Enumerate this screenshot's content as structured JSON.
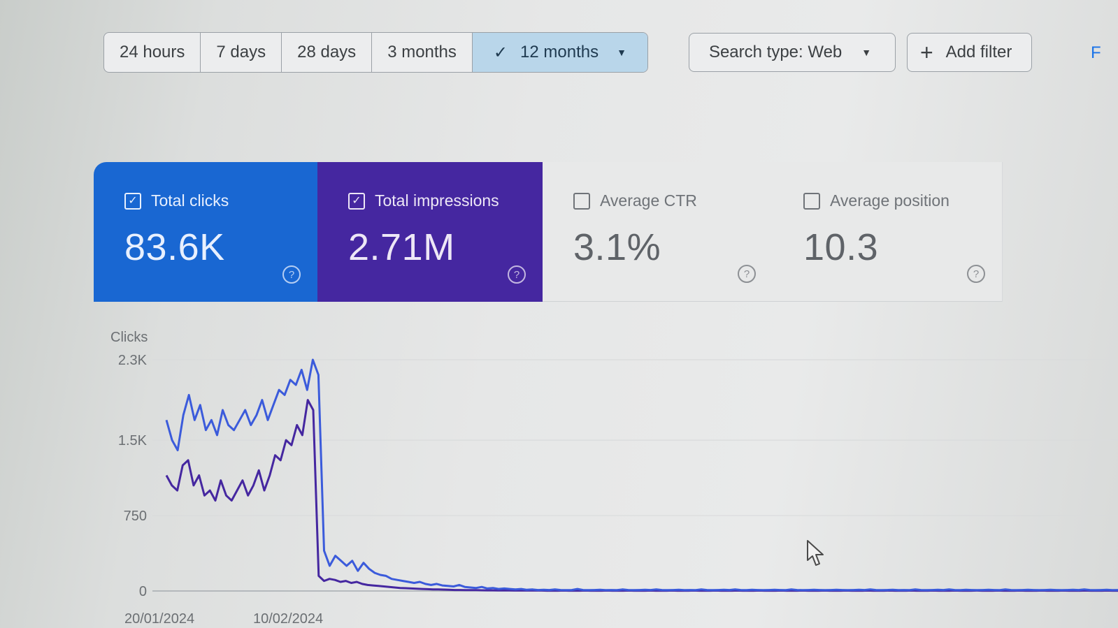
{
  "toolbar": {
    "ranges": [
      {
        "label": "24 hours",
        "active": false
      },
      {
        "label": "7 days",
        "active": false
      },
      {
        "label": "28 days",
        "active": false
      },
      {
        "label": "3 months",
        "active": false
      },
      {
        "label": "12 months",
        "active": true
      }
    ],
    "active_check_icon": "check-icon",
    "dropdown_icon": "caret-down-icon",
    "search_type_label": "Search type: Web",
    "add_filter_label": "Add filter",
    "edge_text": "F"
  },
  "metrics": [
    {
      "label": "Total clicks",
      "value": "83.6K",
      "checked": true,
      "color": "#1967d2"
    },
    {
      "label": "Total impressions",
      "value": "2.71M",
      "checked": true,
      "color": "#4527a0"
    },
    {
      "label": "Average CTR",
      "value": "3.1%",
      "checked": false,
      "color": "#e8e9e9"
    },
    {
      "label": "Average position",
      "value": "10.3",
      "checked": false,
      "color": "#e8e9e9"
    }
  ],
  "chart_data": {
    "type": "line",
    "ylabel": "Clicks",
    "yticks": [
      "2.3K",
      "1.5K",
      "750",
      "0"
    ],
    "ylim": [
      0,
      2300
    ],
    "x_label_first": "20/01/2024",
    "x_label_second": "10/02/2024",
    "grid": true,
    "series": [
      {
        "color": "#3b5bdb",
        "values": [
          1700,
          1500,
          1400,
          1750,
          1950,
          1700,
          1850,
          1600,
          1700,
          1550,
          1800,
          1650,
          1600,
          1700,
          1800,
          1650,
          1750,
          1900,
          1700,
          1850,
          2000,
          1950,
          2100,
          2050,
          2200,
          2000,
          2300,
          2150,
          400,
          250,
          350,
          300,
          250,
          300,
          200,
          280,
          220,
          180,
          160,
          150,
          120,
          110,
          100,
          90,
          80,
          90,
          70,
          60,
          70,
          55,
          50,
          45,
          60,
          40,
          35,
          30,
          40,
          25,
          30,
          20,
          25,
          20,
          15,
          20,
          12,
          15,
          10,
          12,
          10,
          15,
          10,
          8,
          10,
          20,
          10,
          8,
          10,
          12,
          8,
          10,
          8,
          15,
          10,
          8,
          10,
          12,
          10,
          15,
          10,
          8,
          10,
          12,
          8,
          10,
          8,
          15,
          10,
          8,
          10,
          12,
          10,
          15,
          10,
          8,
          12,
          10,
          8,
          10,
          12,
          10,
          8,
          15,
          10,
          8,
          10,
          12,
          10,
          8,
          10,
          12,
          10,
          8,
          10,
          12,
          10,
          15,
          10,
          8,
          10,
          12,
          8,
          10,
          8,
          15,
          10,
          8,
          10,
          12,
          10,
          15,
          10,
          8,
          12,
          10,
          8,
          10,
          12,
          10,
          8,
          15,
          10,
          8,
          10,
          12,
          10,
          8,
          10,
          12,
          10,
          8,
          10,
          12,
          10,
          15,
          10,
          8,
          10,
          12,
          8,
          10
        ]
      },
      {
        "color": "#4527a0",
        "values": [
          1150,
          1050,
          1000,
          1250,
          1300,
          1050,
          1150,
          950,
          1000,
          900,
          1100,
          950,
          900,
          1000,
          1100,
          950,
          1050,
          1200,
          1000,
          1150,
          1350,
          1300,
          1500,
          1450,
          1650,
          1550,
          1900,
          1800,
          150,
          100,
          120,
          110,
          90,
          100,
          80,
          90,
          70,
          60,
          55,
          50,
          45,
          40,
          35,
          30,
          28,
          25,
          22,
          20,
          18,
          16,
          15,
          14,
          12,
          10,
          10,
          9,
          8,
          8,
          7,
          6,
          6,
          5,
          5,
          5,
          4,
          4,
          4,
          4,
          4,
          4,
          3,
          3,
          3,
          4,
          3,
          3,
          3,
          4,
          3,
          3,
          3,
          4,
          3,
          3,
          3,
          4,
          3,
          3,
          3,
          4,
          3,
          3,
          3,
          4,
          3,
          3,
          3,
          4,
          3,
          3,
          3,
          4,
          3,
          3,
          3,
          4,
          3,
          3,
          3,
          4,
          3,
          3,
          3,
          4,
          3,
          3,
          3,
          4,
          3,
          3,
          3,
          4,
          3,
          3,
          3,
          4,
          3,
          3,
          3,
          4,
          3,
          3,
          3,
          4,
          3,
          3,
          3,
          4,
          3,
          3,
          3,
          4,
          3,
          3,
          3,
          4,
          3,
          3,
          3,
          4,
          3,
          3,
          3,
          4,
          3,
          3,
          3,
          4,
          3,
          3,
          3,
          4,
          3,
          3,
          3,
          4,
          3,
          3,
          3,
          4,
          3,
          3,
          3,
          4,
          3,
          3
        ]
      }
    ]
  }
}
